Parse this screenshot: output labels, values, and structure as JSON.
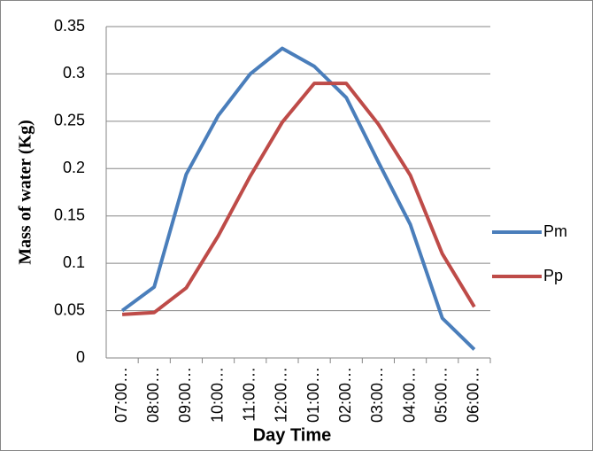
{
  "chart_data": {
    "type": "line",
    "x_label": "Day Time",
    "y_label": "Mass of water (Kg)",
    "categories": [
      "07:00…",
      "08:00…",
      "09:00…",
      "10:00…",
      "11:00…",
      "12:00…",
      "01:00…",
      "02:00…",
      "03:00…",
      "04:00…",
      "05:00…",
      "06:00…"
    ],
    "series": [
      {
        "name": "Pm",
        "color": "#4a7ebb",
        "values": [
          0.05,
          0.075,
          0.194,
          0.256,
          0.3,
          0.327,
          0.308,
          0.275,
          0.207,
          0.141,
          0.042,
          0.009
        ]
      },
      {
        "name": "Pp",
        "color": "#be4b48",
        "values": [
          0.046,
          0.048,
          0.074,
          0.129,
          0.192,
          0.249,
          0.29,
          0.29,
          0.247,
          0.193,
          0.11,
          0.054
        ]
      }
    ],
    "ylim": [
      0,
      0.35
    ],
    "yticks": [
      0,
      0.05,
      0.1,
      0.15,
      0.2,
      0.25,
      0.3,
      0.35
    ],
    "grid": true,
    "legend": "right"
  }
}
